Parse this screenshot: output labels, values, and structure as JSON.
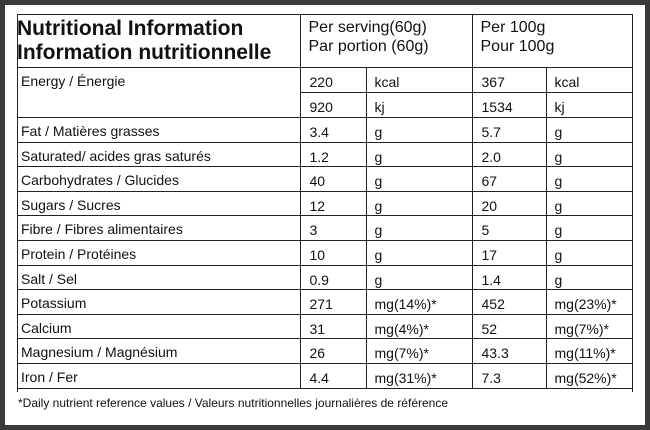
{
  "header": {
    "title_en": "Nutritional Information",
    "title_fr": "Information nutritionnelle",
    "serving_en": "Per serving(60g)",
    "serving_fr": "Par portion (60g)",
    "per100_en": "Per 100g",
    "per100_fr": "Pour 100g"
  },
  "energy": {
    "name": "Energy / Énergie",
    "rows": [
      {
        "serving": "220",
        "serving_unit": "kcal",
        "per100": "367",
        "per100_unit": "kcal"
      },
      {
        "serving": "920",
        "serving_unit": "kj",
        "per100": "1534",
        "per100_unit": "kj"
      }
    ]
  },
  "nutrients": [
    {
      "name": "Fat / Matières grasses",
      "serving": "3.4",
      "serving_unit": "g",
      "per100": "5.7",
      "per100_unit": "g"
    },
    {
      "name": "Saturated/ acides gras saturés",
      "serving": "1.2",
      "serving_unit": "g",
      "per100": "2.0",
      "per100_unit": "g"
    },
    {
      "name": "Carbohydrates / Glucides",
      "serving": "40",
      "serving_unit": "g",
      "per100": "67",
      "per100_unit": "g"
    },
    {
      "name": "Sugars / Sucres",
      "serving": "12",
      "serving_unit": "g",
      "per100": "20",
      "per100_unit": "g"
    },
    {
      "name": "Fibre / Fibres alimentaires",
      "serving": "3",
      "serving_unit": "g",
      "per100": "5",
      "per100_unit": "g"
    },
    {
      "name": "Protein / Protéines",
      "serving": "10",
      "serving_unit": "g",
      "per100": "17",
      "per100_unit": "g"
    },
    {
      "name": "Salt / Sel",
      "serving": "0.9",
      "serving_unit": "g",
      "per100": "1.4",
      "per100_unit": "g"
    },
    {
      "name": "Potassium",
      "serving": "271",
      "serving_unit": "mg(14%)*",
      "per100": "452",
      "per100_unit": "mg(23%)*"
    },
    {
      "name": "Calcium",
      "serving": "31",
      "serving_unit": "mg(4%)*",
      "per100": "52",
      "per100_unit": "mg(7%)*"
    },
    {
      "name": "Magnesium / Magnésium",
      "serving": "26",
      "serving_unit": "mg(7%)*",
      "per100": "43.3",
      "per100_unit": "mg(11%)*"
    },
    {
      "name": "Iron / Fer",
      "serving": "4.4",
      "serving_unit": "mg(31%)*",
      "per100": "7.3",
      "per100_unit": "mg(52%)*"
    }
  ],
  "footnote": "*Daily nutrient reference values / Valeurs nutritionnelles journalières de référence"
}
